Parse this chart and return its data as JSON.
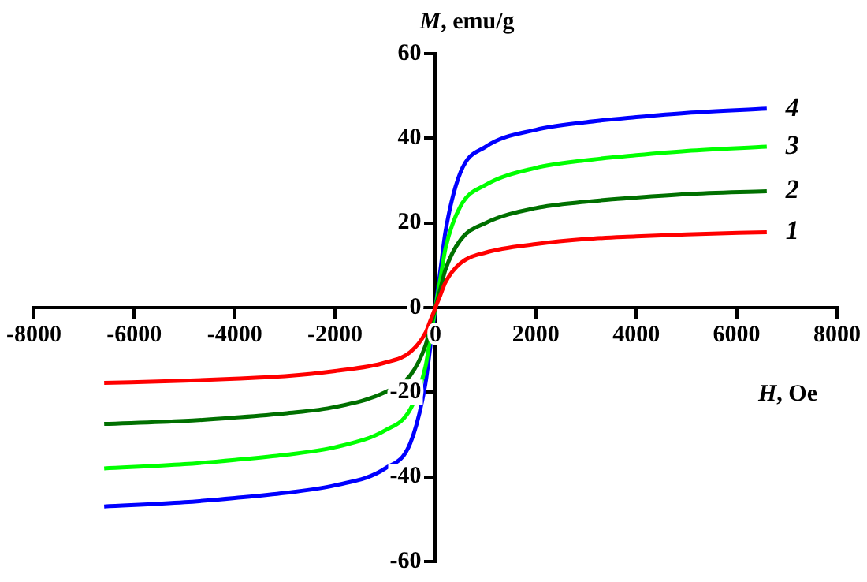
{
  "chart_data": {
    "type": "line",
    "xlabel": "H, Oe",
    "ylabel": "M, emu/g",
    "x": [
      -6600,
      -5000,
      -4000,
      -3000,
      -2000,
      -1000,
      -500,
      -200,
      -100,
      0,
      100,
      200,
      500,
      1000,
      2000,
      3000,
      4000,
      5000,
      6600
    ],
    "series": [
      {
        "name": "1",
        "color": "#ff0000",
        "values": [
          -17.8,
          -17.3,
          -16.8,
          -16.2,
          -15,
          -13,
          -10.5,
          -6,
          -3,
          0,
          3,
          6,
          10.5,
          13,
          15,
          16.2,
          16.8,
          17.3,
          17.8
        ]
      },
      {
        "name": "2",
        "color": "#007000",
        "values": [
          -27.5,
          -26.8,
          -26,
          -25,
          -23.5,
          -20,
          -16,
          -9,
          -4.5,
          0,
          4.5,
          9,
          16,
          20,
          23.5,
          25,
          26,
          26.8,
          27.5
        ]
      },
      {
        "name": "3",
        "color": "#00ff00",
        "values": [
          -38,
          -37,
          -36,
          -34.8,
          -33,
          -29,
          -24,
          -14,
          -7,
          0,
          7,
          14,
          24,
          29,
          33,
          34.8,
          36,
          37,
          38
        ]
      },
      {
        "name": "4",
        "color": "#0000ff",
        "values": [
          -47,
          -46,
          -45,
          -43.8,
          -42,
          -38,
          -32,
          -18,
          -9,
          0,
          9,
          18,
          32,
          38,
          42,
          43.8,
          45,
          46,
          47
        ]
      }
    ],
    "xlim": [
      -8000,
      8000
    ],
    "ylim": [
      -60,
      60
    ],
    "xticks": [
      -8000,
      -6000,
      -4000,
      -2000,
      0,
      2000,
      4000,
      6000,
      8000
    ],
    "yticks": [
      -60,
      -40,
      -20,
      0,
      20,
      40,
      60
    ],
    "grid": false,
    "legend": false,
    "marker": "none",
    "line_style": "solid"
  }
}
